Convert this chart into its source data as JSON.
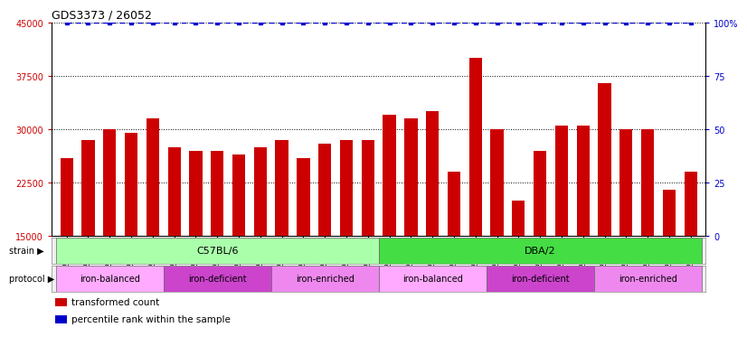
{
  "title": "GDS3373 / 26052",
  "samples": [
    "GSM262762",
    "GSM262765",
    "GSM262768",
    "GSM262769",
    "GSM262770",
    "GSM262796",
    "GSM262797",
    "GSM262798",
    "GSM262799",
    "GSM262800",
    "GSM262771",
    "GSM262772",
    "GSM262773",
    "GSM262794",
    "GSM262795",
    "GSM262817",
    "GSM262819",
    "GSM262820",
    "GSM262839",
    "GSM262840",
    "GSM262950",
    "GSM262951",
    "GSM262952",
    "GSM262953",
    "GSM262954",
    "GSM262841",
    "GSM262842",
    "GSM262843",
    "GSM262844",
    "GSM262845"
  ],
  "values": [
    26000,
    28500,
    30000,
    29500,
    31500,
    27500,
    27000,
    27000,
    26500,
    27500,
    28500,
    26000,
    28000,
    28500,
    28500,
    32000,
    31500,
    32500,
    24000,
    40000,
    30000,
    20000,
    27000,
    30500,
    30500,
    36500,
    30000,
    30000,
    21500,
    24000
  ],
  "bar_color": "#cc0000",
  "dot_color": "#0000cc",
  "ylim_left": [
    15000,
    45000
  ],
  "ylim_right": [
    0,
    100
  ],
  "yticks_left": [
    15000,
    22500,
    30000,
    37500,
    45000
  ],
  "yticks_right": [
    0,
    25,
    50,
    75,
    100
  ],
  "strain_groups": [
    {
      "label": "C57BL/6",
      "start": 0,
      "end": 15,
      "color": "#aaffaa"
    },
    {
      "label": "DBA/2",
      "start": 15,
      "end": 30,
      "color": "#44dd44"
    }
  ],
  "protocol_groups": [
    {
      "label": "iron-balanced",
      "start": 0,
      "end": 5,
      "color": "#ffaaff"
    },
    {
      "label": "iron-deficient",
      "start": 5,
      "end": 10,
      "color": "#cc44cc"
    },
    {
      "label": "iron-enriched",
      "start": 10,
      "end": 15,
      "color": "#ee88ee"
    },
    {
      "label": "iron-balanced",
      "start": 15,
      "end": 20,
      "color": "#ffaaff"
    },
    {
      "label": "iron-deficient",
      "start": 20,
      "end": 25,
      "color": "#cc44cc"
    },
    {
      "label": "iron-enriched",
      "start": 25,
      "end": 30,
      "color": "#ee88ee"
    }
  ],
  "legend_items": [
    {
      "label": "transformed count",
      "color": "#cc0000"
    },
    {
      "label": "percentile rank within the sample",
      "color": "#0000cc"
    }
  ],
  "bg_color": "#ffffff",
  "plot_bg_color": "#ffffff",
  "tick_label_color_left": "#cc0000",
  "tick_label_color_right": "#0000cc"
}
